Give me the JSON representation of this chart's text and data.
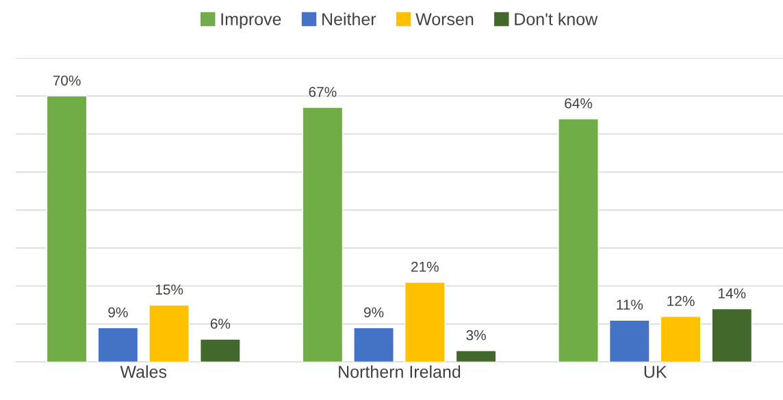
{
  "chart_data": {
    "type": "bar",
    "categories": [
      "Wales",
      "Northern Ireland",
      "UK"
    ],
    "series": [
      {
        "name": "Improve",
        "color": "#70ad47",
        "values": [
          70,
          67,
          64
        ],
        "value_labels": [
          "70%",
          "67%",
          "64%"
        ]
      },
      {
        "name": "Neither",
        "color": "#4472c4",
        "values": [
          9,
          9,
          11
        ],
        "value_labels": [
          "9%",
          "9%",
          "11%"
        ]
      },
      {
        "name": "Worsen",
        "color": "#ffc000",
        "values": [
          15,
          21,
          12
        ],
        "value_labels": [
          "15%",
          "21%",
          "12%"
        ]
      },
      {
        "name": "Don't know",
        "color": "#43682b",
        "values": [
          6,
          3,
          14
        ],
        "value_labels": [
          "6%",
          "3%",
          "14%"
        ]
      }
    ],
    "ylim": [
      0,
      80
    ],
    "yticks": [
      {
        "value": 0,
        "label": null
      },
      {
        "value": 10,
        "label": null
      },
      {
        "value": 20,
        "label": null
      },
      {
        "value": 30,
        "label": null
      },
      {
        "value": 40,
        "label": null
      },
      {
        "value": 50,
        "label": null
      },
      {
        "value": 60,
        "label": null
      },
      {
        "value": 70,
        "label": null
      },
      {
        "value": 80,
        "label": null
      }
    ],
    "grid": "y",
    "legend": "top",
    "tick_labels": "x"
  }
}
